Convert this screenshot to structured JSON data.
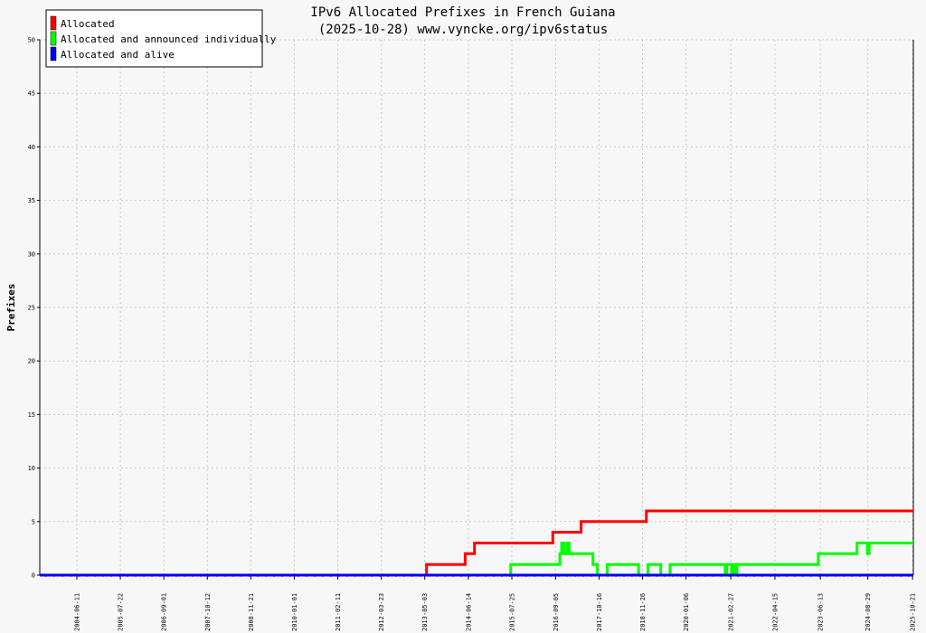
{
  "chart_data": {
    "type": "line",
    "title": "IPv6 Allocated Prefixes in French Guiana",
    "subtitle": "(2025-10-28) www.vyncke.org/ipv6status",
    "xlabel": "",
    "ylabel": "Prefixes",
    "ylim": [
      0,
      50
    ],
    "yticks": [
      0,
      5,
      10,
      15,
      20,
      25,
      30,
      35,
      40,
      45,
      50
    ],
    "xlim": [
      "2003-07-01",
      "2025-10-28"
    ],
    "xticks": [
      "2004-06-11",
      "2005-07-22",
      "2006-09-01",
      "2007-10-12",
      "2008-11-21",
      "2010-01-01",
      "2011-02-11",
      "2012-03-23",
      "2013-05-03",
      "2014-06-14",
      "2015-07-25",
      "2016-09-05",
      "2017-10-16",
      "2018-11-26",
      "2020-01-06",
      "2021-02-27",
      "2022-04-15",
      "2023-06-13",
      "2024-08-29",
      "2025-10-21"
    ],
    "grid": true,
    "legend_position": "top-left",
    "series": [
      {
        "name": "Allocated",
        "color": "#ff0000",
        "step": true,
        "points": [
          [
            "2003-07-01",
            0
          ],
          [
            "2013-05-20",
            1
          ],
          [
            "2014-05-15",
            2
          ],
          [
            "2014-08-10",
            3
          ],
          [
            "2016-08-10",
            4
          ],
          [
            "2017-05-01",
            5
          ],
          [
            "2019-01-01",
            6
          ],
          [
            "2025-10-28",
            6
          ]
        ]
      },
      {
        "name": "Allocated and announced individually",
        "color": "#00ff00",
        "step": true,
        "points": [
          [
            "2003-07-01",
            0
          ],
          [
            "2015-07-15",
            1
          ],
          [
            "2016-10-15",
            2
          ],
          [
            "2016-11-01",
            3
          ],
          [
            "2016-11-20",
            2
          ],
          [
            "2016-12-20",
            3
          ],
          [
            "2017-01-10",
            2
          ],
          [
            "2017-08-20",
            1
          ],
          [
            "2017-10-01",
            0
          ],
          [
            "2018-01-01",
            1
          ],
          [
            "2018-10-20",
            0
          ],
          [
            "2019-01-15",
            1
          ],
          [
            "2019-05-15",
            0
          ],
          [
            "2019-08-10",
            1
          ],
          [
            "2020-01-25",
            1
          ],
          [
            "2021-01-05",
            0
          ],
          [
            "2021-01-20",
            1
          ],
          [
            "2021-03-05",
            0
          ],
          [
            "2021-03-20",
            1
          ],
          [
            "2021-04-10",
            0
          ],
          [
            "2021-04-25",
            1
          ],
          [
            "2023-05-25",
            2
          ],
          [
            "2024-05-20",
            3
          ],
          [
            "2024-08-25",
            2
          ],
          [
            "2024-09-10",
            3
          ],
          [
            "2025-10-28",
            3
          ]
        ]
      },
      {
        "name": "Allocated and alive",
        "color": "#0000ff",
        "step": true,
        "points": [
          [
            "2003-07-01",
            0
          ],
          [
            "2025-10-28",
            0
          ]
        ]
      }
    ]
  }
}
